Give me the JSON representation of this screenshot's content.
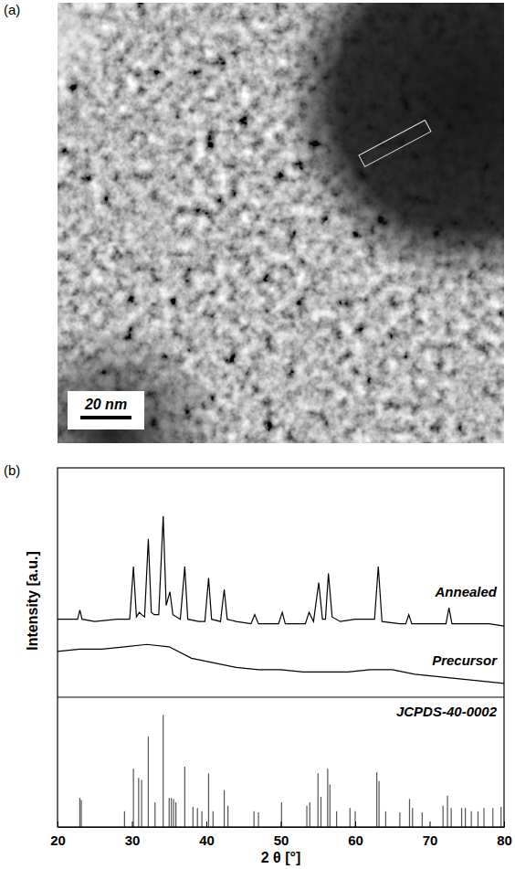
{
  "image_panel": {
    "label": "(a)",
    "scale_bar": "20 nm"
  },
  "chart_data": [
    {
      "type": "line",
      "panel_label": "(b)",
      "ylabel": "Intensity [a.u.]",
      "xlim": [
        20,
        80
      ],
      "ylim": [
        0,
        100
      ],
      "tick_labels": false,
      "series": [
        {
          "name": "Annealed",
          "color": "#000000",
          "x": [
            20,
            22,
            22.7,
            23,
            23.3,
            25,
            28,
            29.7,
            30.2,
            30.6,
            31,
            31.3,
            31.7,
            32.2,
            32.6,
            33,
            33.6,
            34.2,
            34.6,
            35.1,
            35.5,
            36.5,
            37.1,
            37.5,
            39,
            39.8,
            40.3,
            40.7,
            41.9,
            42.4,
            42.8,
            44,
            46,
            46.5,
            47,
            49.7,
            50.2,
            50.6,
            53.3,
            53.8,
            54.4,
            55.1,
            55.6,
            56,
            56.4,
            56.9,
            58,
            60,
            62.6,
            63.1,
            63.6,
            66,
            66.8,
            67.2,
            67.6,
            70,
            72.2,
            72.6,
            73,
            75,
            78,
            80
          ],
          "values": [
            34,
            34,
            34,
            38,
            34,
            33,
            34,
            34,
            57,
            35,
            37,
            36,
            35,
            69,
            37,
            36,
            36,
            79,
            40,
            46,
            36,
            34,
            57,
            34,
            33,
            33,
            52,
            34,
            33,
            47,
            34,
            33,
            32,
            36,
            32,
            32,
            37,
            32,
            32,
            37,
            33,
            50,
            34,
            34,
            54,
            35,
            33,
            34,
            34,
            57,
            33,
            32,
            32,
            36,
            32,
            32,
            32,
            39,
            32,
            32,
            32,
            31
          ]
        },
        {
          "name": "Precursor",
          "color": "#000000",
          "x": [
            20,
            23,
            26,
            29,
            32,
            35,
            38,
            41,
            44,
            47,
            50,
            53,
            56,
            59,
            62,
            65,
            68,
            71,
            74,
            77,
            80
          ],
          "values": [
            20,
            21,
            21,
            22,
            23,
            22,
            17,
            15,
            13,
            12,
            12,
            11,
            11,
            11,
            12,
            12,
            10,
            9,
            8,
            7,
            6
          ]
        }
      ]
    },
    {
      "type": "bar",
      "title": "JCPDS-40-0002",
      "xlabel": "2 θ [°]",
      "xlim": [
        20,
        80
      ],
      "xticks": [
        20,
        30,
        40,
        50,
        60,
        70,
        80
      ],
      "ylim": [
        0,
        116
      ],
      "tick_labels": "x",
      "color": "#555555",
      "x": [
        23.0,
        23.2,
        29.0,
        30.2,
        30.9,
        31.3,
        32.2,
        33.1,
        34.2,
        35.0,
        35.3,
        35.6,
        35.9,
        37.1,
        38.2,
        38.8,
        39.4,
        40.3,
        40.9,
        42.4,
        42.9,
        46.4,
        47.0,
        50.1,
        53.5,
        53.9,
        55.0,
        55.4,
        56.3,
        56.6,
        57.5,
        59.3,
        60.0,
        62.9,
        63.2,
        64.1,
        66.0,
        67.3,
        67.7,
        69.0,
        71.8,
        72.4,
        72.9,
        74.3,
        74.8,
        75.6,
        76.5,
        77.3,
        78.5,
        79.6
      ],
      "values": [
        26,
        24,
        14,
        52,
        44,
        42,
        81,
        22,
        100,
        26,
        26,
        25,
        22,
        54,
        18,
        17,
        14,
        48,
        14,
        33,
        19,
        14,
        13,
        22,
        19,
        22,
        48,
        27,
        52,
        38,
        14,
        17,
        14,
        49,
        41,
        14,
        13,
        25,
        17,
        13,
        19,
        28,
        17,
        17,
        17,
        14,
        14,
        17,
        17,
        18
      ]
    }
  ]
}
